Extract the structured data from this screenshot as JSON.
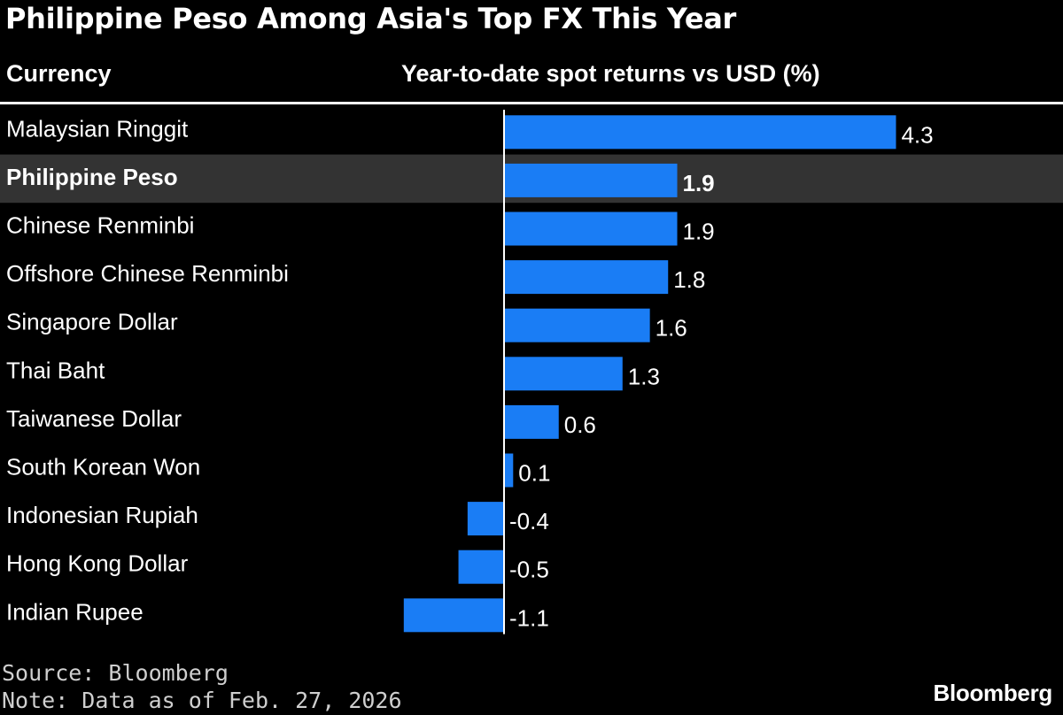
{
  "title": "Philippine Peso Among Asia's Top FX This Year",
  "header": {
    "currency": "Currency",
    "returns": "Year-to-date spot returns vs USD (%)"
  },
  "chart_data": {
    "type": "bar",
    "orientation": "horizontal",
    "title": "Philippine Peso Among Asia's Top FX This Year",
    "xlabel": "Year-to-date spot returns vs USD (%)",
    "ylabel": "Currency",
    "categories": [
      "Malaysian Ringgit",
      "Philippine Peso",
      "Chinese Renminbi",
      "Offshore Chinese Renminbi",
      "Singapore Dollar",
      "Thai Baht",
      "Taiwanese Dollar",
      "South Korean Won",
      "Indonesian Rupiah",
      "Hong Kong Dollar",
      "Indian Rupee"
    ],
    "values": [
      4.3,
      1.9,
      1.9,
      1.8,
      1.6,
      1.3,
      0.6,
      0.1,
      -0.4,
      -0.5,
      -1.1
    ],
    "labels": [
      "4.3",
      "1.9",
      "1.9",
      "1.8",
      "1.6",
      "1.3",
      "0.6",
      "0.1",
      "-0.4",
      "-0.5",
      "-1.1"
    ],
    "highlight": "Philippine Peso",
    "xlim": [
      -1.1,
      4.3
    ],
    "grid": false,
    "legend": "none"
  },
  "colors": {
    "background": "#000000",
    "bar": "#1a7df5",
    "highlight_row": "#333333",
    "text": "#ffffff",
    "footer_text": "#cfcfcf"
  },
  "footer": {
    "source": "Source: Bloomberg",
    "note": "Note: Data as of Feb. 27, 2026",
    "brand": "Bloomberg"
  }
}
